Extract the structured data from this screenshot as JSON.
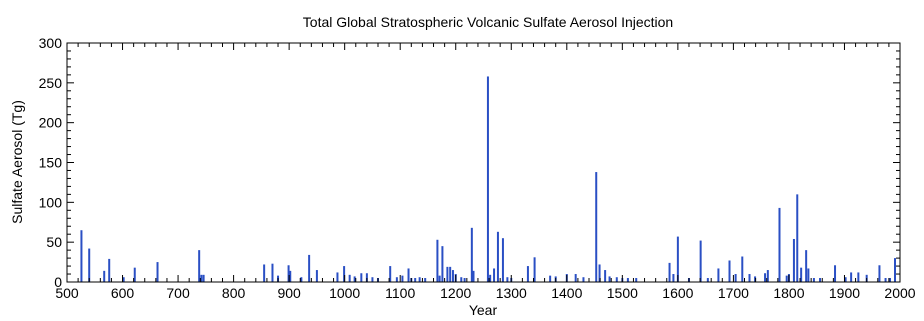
{
  "chart_data": {
    "type": "bar",
    "title": "Total Global Stratospheric Volcanic Sulfate Aerosol Injection",
    "xlabel": "Year",
    "ylabel": "Sulfate Aerosol (Tg)",
    "xlim": [
      500,
      2000
    ],
    "ylim": [
      0,
      300
    ],
    "xticks": [
      "500",
      "600",
      "700",
      "800",
      "900",
      "1000",
      "1100",
      "1200",
      "1300",
      "1400",
      "1500",
      "1600",
      "1700",
      "1800",
      "1900",
      "2000"
    ],
    "yticks": [
      "0",
      "50",
      "100",
      "150",
      "200",
      "250",
      "300"
    ],
    "grid": false,
    "series_color": "#2a4fc4",
    "x": [
      526,
      540,
      567,
      576,
      602,
      622,
      663,
      738,
      742,
      746,
      855,
      870,
      880,
      899,
      902,
      922,
      936,
      950,
      987,
      999,
      1009,
      1018,
      1030,
      1040,
      1050,
      1060,
      1082,
      1094,
      1104,
      1115,
      1120,
      1127,
      1135,
      1145,
      1167,
      1171,
      1176,
      1185,
      1190,
      1195,
      1200,
      1210,
      1216,
      1229,
      1232,
      1258,
      1262,
      1269,
      1276,
      1285,
      1293,
      1300,
      1330,
      1342,
      1370,
      1380,
      1400,
      1416,
      1430,
      1453,
      1459,
      1469,
      1477,
      1490,
      1500,
      1510,
      1525,
      1585,
      1592,
      1600,
      1620,
      1641,
      1654,
      1673,
      1693,
      1704,
      1716,
      1729,
      1739,
      1757,
      1762,
      1783,
      1796,
      1800,
      1809,
      1815,
      1822,
      1831,
      1835,
      1845,
      1856,
      1883,
      1902,
      1912,
      1925,
      1940,
      1963,
      1974,
      1982,
      1991
    ],
    "values": [
      65,
      42,
      14,
      29,
      6,
      18,
      25,
      40,
      9,
      9,
      22,
      23,
      8,
      21,
      14,
      6,
      34,
      15,
      12,
      20,
      9,
      7,
      11,
      11,
      6,
      5,
      20,
      6,
      8,
      17,
      5,
      5,
      6,
      5,
      53,
      8,
      45,
      19,
      19,
      15,
      10,
      6,
      5,
      68,
      14,
      258,
      9,
      17,
      63,
      55,
      6,
      5,
      20,
      31,
      8,
      7,
      10,
      10,
      6,
      138,
      22,
      15,
      7,
      6,
      5,
      5,
      5,
      24,
      10,
      57,
      5,
      52,
      5,
      17,
      27,
      10,
      32,
      10,
      7,
      11,
      15,
      93,
      8,
      10,
      54,
      110,
      18,
      40,
      17,
      5,
      5,
      21,
      6,
      12,
      12,
      9,
      21,
      5,
      5,
      30
    ]
  }
}
